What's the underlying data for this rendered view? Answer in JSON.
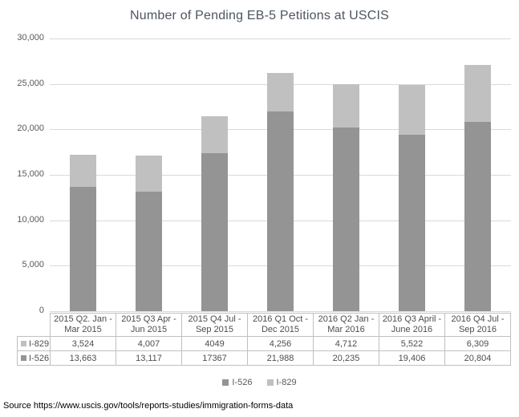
{
  "title": "Number of Pending EB-5 Petitions at USCIS",
  "source": "Source https://www.uscis.gov/tools/reports-studies/immigration-forms-data",
  "colors": {
    "series_i526": "#949494",
    "series_i829": "#c0c0c0",
    "gridline": "#d9d9d9",
    "table_border": "#c0c0c0"
  },
  "chart_data": {
    "type": "bar",
    "stacked": true,
    "title": "Number of Pending EB-5 Petitions at USCIS",
    "categories": [
      "2015 Q2. Jan - Mar 2015",
      "2015 Q3 Apr - Jun 2015",
      "2015 Q4 Jul - Sep 2015",
      "2016 Q1 Oct - Dec 2015",
      "2016 Q2 Jan - Mar 2016",
      "2016 Q3 April - June 2016",
      "2016 Q4 Jul - Sep 2016"
    ],
    "series": [
      {
        "name": "I-526",
        "color": "#949494",
        "values": [
          13663,
          13117,
          17367,
          21988,
          20235,
          19406,
          20804
        ]
      },
      {
        "name": "I-829",
        "color": "#c0c0c0",
        "values": [
          3524,
          4007,
          4049,
          4256,
          4712,
          5522,
          6309
        ]
      }
    ],
    "ylim": [
      0,
      30000
    ],
    "ytick_interval": 5000,
    "ytick_labels": [
      "0",
      "5,000",
      "10,000",
      "15,000",
      "20,000",
      "25,000",
      "30,000"
    ],
    "xlabel": "",
    "ylabel": "",
    "grid": true,
    "legend_position": "bottom",
    "legend_order": [
      "I-526",
      "I-829"
    ],
    "data_table": {
      "rows": [
        {
          "label": "I-829",
          "color": "#c0c0c0",
          "display_values": [
            "3,524",
            "4,007",
            "4049",
            "4,256",
            "4,712",
            "5,522",
            "6,309"
          ]
        },
        {
          "label": "I-526",
          "color": "#949494",
          "display_values": [
            "13,663",
            "13,117",
            "17367",
            "21,988",
            "20,235",
            "19,406",
            "20,804"
          ]
        }
      ]
    }
  }
}
